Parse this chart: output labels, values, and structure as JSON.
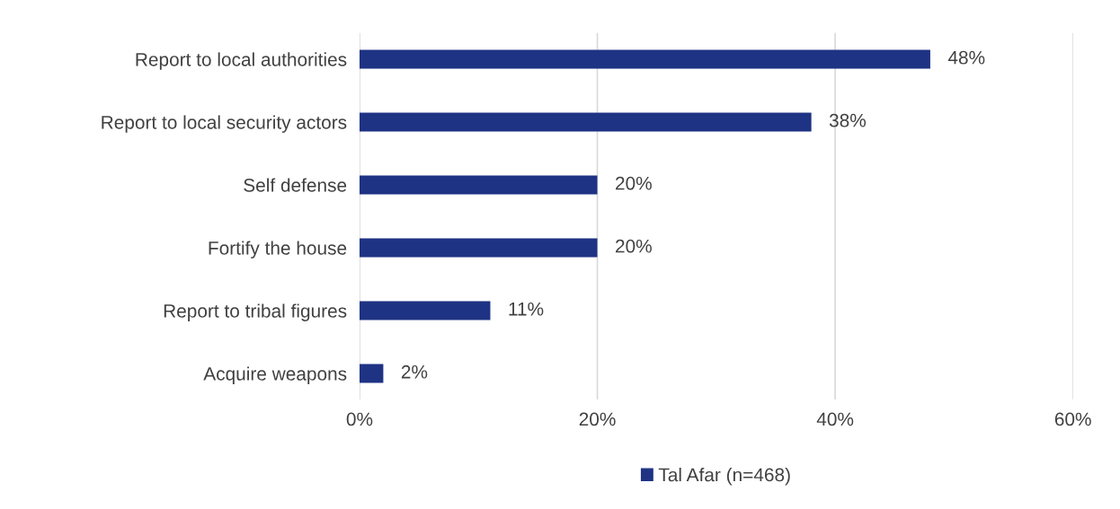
{
  "chart_data": {
    "type": "bar",
    "orientation": "horizontal",
    "categories": [
      "Report to local authorities",
      "Report to local security actors",
      "Self defense",
      "Fortify the house",
      "Report to tribal figures",
      "Acquire weapons"
    ],
    "series": [
      {
        "name": "Tal Afar (n=468)",
        "color": "#1f3384",
        "values": [
          48,
          38,
          20,
          20,
          11,
          2
        ],
        "value_labels": [
          "48%",
          "38%",
          "20%",
          "20%",
          "11%",
          "2%"
        ]
      }
    ],
    "xlim": [
      0,
      60
    ],
    "xticks": [
      {
        "value": 0,
        "label": "0%"
      },
      {
        "value": 20,
        "label": "20%"
      },
      {
        "value": 40,
        "label": "40%"
      },
      {
        "value": 60,
        "label": "60%"
      }
    ],
    "grid": "x",
    "legend": "bottom"
  }
}
